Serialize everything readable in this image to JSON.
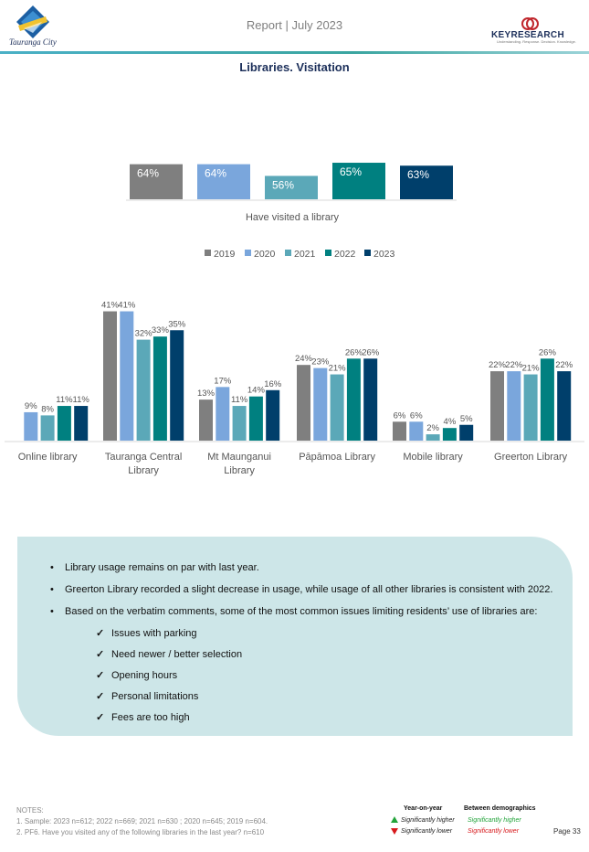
{
  "header": {
    "report_title": "Report | July 2023",
    "left_logo_text": "Tauranga City",
    "right_logo_text": "KEYRESEARCH",
    "right_logo_tagline": "Understanding. Response. Decision. Knowledge."
  },
  "page_title": "Libraries. Visitation",
  "colors": {
    "2019": "#7f7f7f",
    "2020": "#7aa6dc",
    "2021": "#5ba8b8",
    "2022": "#008080",
    "2023": "#003f6b",
    "accent": "#3aa5a0",
    "panel": "#cde6e8"
  },
  "chart_data": [
    {
      "type": "bar",
      "categories": [
        "Have visited a library"
      ],
      "series": [
        {
          "name": "2019",
          "values": [
            64
          ]
        },
        {
          "name": "2020",
          "values": [
            64
          ]
        },
        {
          "name": "2021",
          "values": [
            56
          ]
        },
        {
          "name": "2022",
          "values": [
            65
          ]
        },
        {
          "name": "2023",
          "values": [
            63
          ]
        }
      ],
      "value_labels": [
        "64%",
        "64%",
        "56%",
        "65%",
        "63%"
      ],
      "xlabel": "Have visited a library",
      "ylim": [
        0,
        100
      ],
      "grid": false,
      "legend": "bottom"
    },
    {
      "type": "bar",
      "categories": [
        "Online library",
        "Tauranga Central Library",
        "Mt Maunganui Library",
        "Pāpāmoa Library",
        "Mobile library",
        "Greerton Library"
      ],
      "category_lines": [
        [
          "Online library"
        ],
        [
          "Tauranga Central",
          "Library"
        ],
        [
          "Mt Maunganui",
          "Library"
        ],
        [
          "Pāpāmoa Library"
        ],
        [
          "Mobile library"
        ],
        [
          "Greerton Library"
        ]
      ],
      "series": [
        {
          "name": "2019",
          "values": [
            null,
            41,
            13,
            24,
            6,
            22
          ]
        },
        {
          "name": "2020",
          "values": [
            9,
            41,
            17,
            23,
            6,
            22
          ]
        },
        {
          "name": "2021",
          "values": [
            8,
            32,
            11,
            21,
            2,
            21
          ]
        },
        {
          "name": "2022",
          "values": [
            11,
            33,
            14,
            26,
            4,
            26
          ]
        },
        {
          "name": "2023",
          "values": [
            11,
            35,
            16,
            26,
            5,
            22
          ]
        }
      ],
      "ylim": [
        0,
        45
      ],
      "grid": false,
      "legend": "top"
    }
  ],
  "legend_labels": [
    "2019",
    "2020",
    "2021",
    "2022",
    "2023"
  ],
  "summary": {
    "bullets": [
      "Library usage remains on par with last year.",
      "Greerton Library recorded a slight decrease in usage, while usage of all other libraries is consistent with 2022.",
      "Based on the verbatim comments, some of the most common issues limiting residents’ use of libraries are:"
    ],
    "issues": [
      "Issues with parking",
      "Need newer / better selection",
      "Opening hours",
      "Personal limitations",
      "Fees are too high"
    ]
  },
  "notes": {
    "heading": "NOTES:",
    "items": [
      "1.    Sample: 2023 n=612; 2022 n=669; 2021 n=630 ; 2020 n=645; 2019 n=604.",
      "2.    PF6. Have you visited any of the following libraries in the last year? n=610"
    ]
  },
  "significance_key": {
    "yoy_heading": "Year-on-year",
    "demo_heading": "Between demographics",
    "higher": "Significantly higher",
    "lower": "Significantly lower",
    "higher_color": "#22a33a",
    "lower_color": "#d7191c"
  },
  "page_number": "Page 33"
}
